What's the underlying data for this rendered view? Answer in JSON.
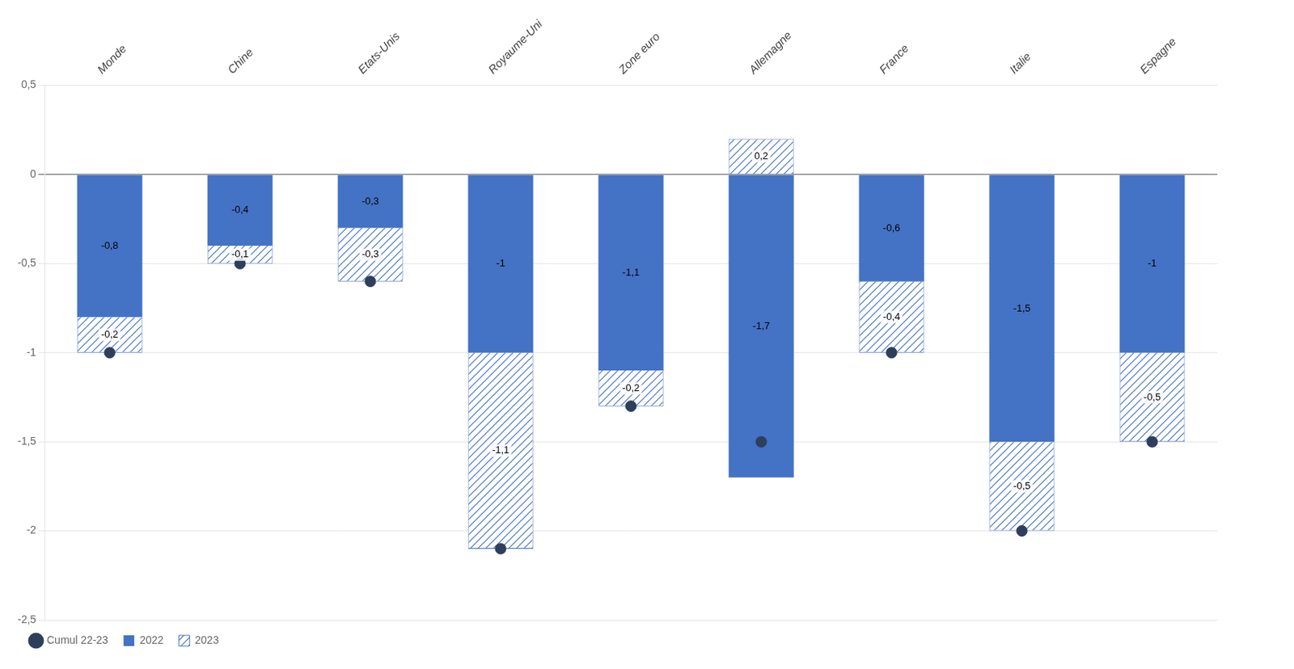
{
  "chart_data": {
    "type": "bar",
    "stacked": true,
    "data_labels": true,
    "grid": true,
    "legend": "lower left",
    "categories": [
      "Monde",
      "Chine",
      "Etats-Unis",
      "Royaume-Uni",
      "Zone euro",
      "Allemagne",
      "France",
      "Italie",
      "Espagne"
    ],
    "series": [
      {
        "name": "2022",
        "color": "#4472c4",
        "values": [
          -0.8,
          -0.4,
          -0.3,
          -1.0,
          -1.1,
          -1.7,
          -0.6,
          -1.5,
          -1.0
        ],
        "value_labels": [
          "-0,8",
          "-0,4",
          "-0,3",
          "-1",
          "-1,1",
          "-1,7",
          "-0,6",
          "-1,5",
          "-1"
        ]
      },
      {
        "name": "2023",
        "color": "#4472c4",
        "values": [
          -0.2,
          -0.1,
          -0.3,
          -1.1,
          -0.2,
          0.2,
          -0.4,
          -0.5,
          -0.5
        ],
        "value_labels": [
          "-0,2",
          "-0,1",
          "-0,3",
          "-1,1",
          "-0,2",
          "0,2",
          "-0,4",
          "-0,5",
          "-0,5"
        ]
      },
      {
        "name": "Cumul 22-23",
        "type": "scatter",
        "marker": "circle",
        "color": "#2e3f5c",
        "values": [
          -1.0,
          -0.5,
          -0.6,
          -2.1,
          -1.3,
          -1.5,
          -1.0,
          -2.0,
          -1.5
        ]
      }
    ],
    "ylim": [
      -2.5,
      0.5
    ],
    "yticks": [
      {
        "value": 0.5,
        "label": "0,5"
      },
      0,
      {
        "value": -0.5,
        "label": "-0,5"
      },
      -1,
      {
        "value": -1.5,
        "label": "-1,5"
      },
      -2,
      {
        "value": -2.5,
        "label": "-2,5"
      }
    ]
  }
}
